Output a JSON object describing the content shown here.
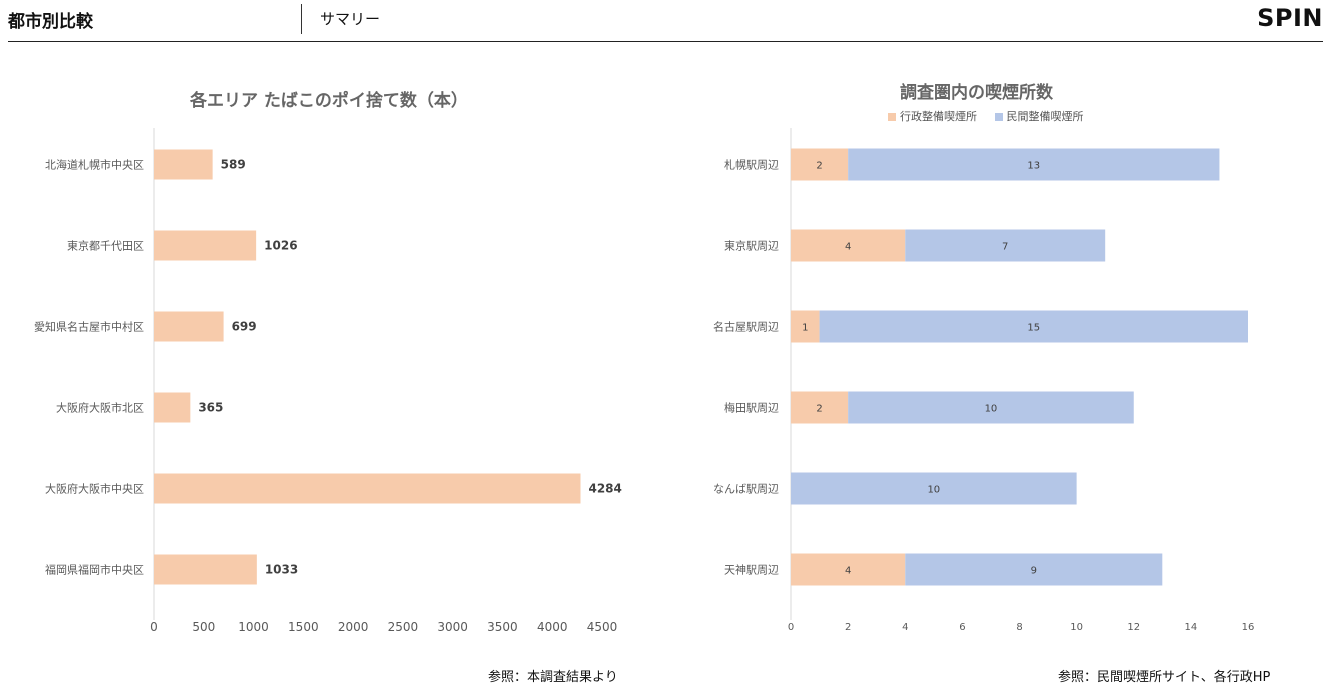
{
  "header": {
    "title": "都市別比較",
    "subtitle": "サマリー",
    "logo_text": "SPIN"
  },
  "colors": {
    "peach": "#f7cbab",
    "blue": "#b4c6e7",
    "axis": "#d9d9d9",
    "tick_text": "#595959"
  },
  "chart_data": [
    {
      "type": "bar",
      "orientation": "horizontal",
      "title": "各エリア たばこのポイ捨て数（本）",
      "categories": [
        "北海道札幌市中央区",
        "東京都千代田区",
        "愛知県名古屋市中村区",
        "大阪府大阪市北区",
        "大阪府大阪市中央区",
        "福岡県福岡市中央区"
      ],
      "values": [
        589,
        1026,
        699,
        365,
        4284,
        1033
      ],
      "xlim": [
        0,
        4500
      ],
      "xticks": [
        0,
        500,
        1000,
        1500,
        2000,
        2500,
        3000,
        3500,
        4000,
        4500
      ],
      "data_labels": true,
      "grid": false,
      "source_note": "参照：本調査結果より"
    },
    {
      "type": "bar",
      "orientation": "horizontal",
      "stacked": true,
      "title": "調査圏内の喫煙所数",
      "categories": [
        "札幌駅周辺",
        "東京駅周辺",
        "名古屋駅周辺",
        "梅田駅周辺",
        "なんば駅周辺",
        "天神駅周辺"
      ],
      "series": [
        {
          "name": "行政整備喫煙所",
          "values": [
            2,
            4,
            1,
            2,
            0,
            4
          ]
        },
        {
          "name": "民間整備喫煙所",
          "values": [
            13,
            7,
            15,
            10,
            10,
            9
          ]
        }
      ],
      "xlim": [
        0,
        16
      ],
      "xticks": [
        0,
        2,
        4,
        6,
        8,
        10,
        12,
        14,
        16
      ],
      "legend": "top",
      "data_labels": true,
      "grid": false,
      "source_note": "参照：民間喫煙所サイト、各行政HP"
    }
  ]
}
